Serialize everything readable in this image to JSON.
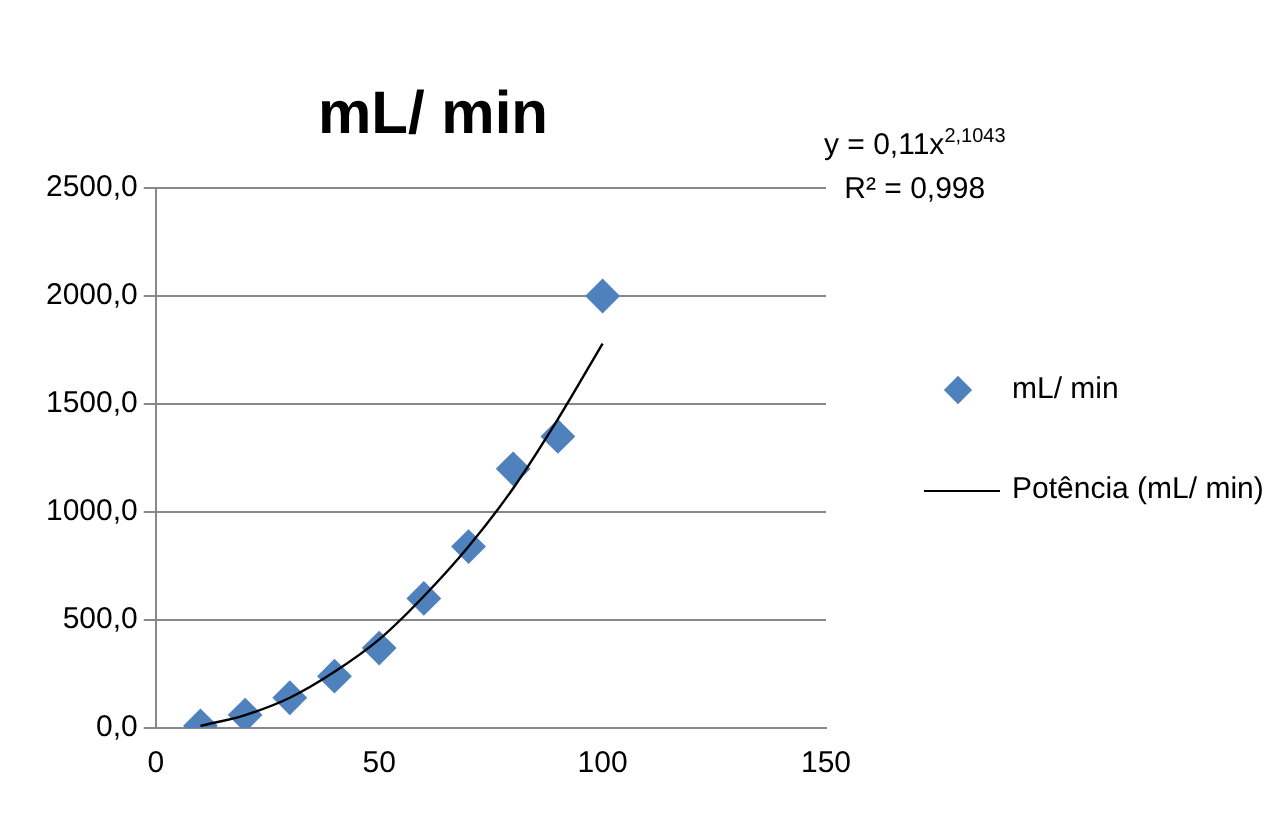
{
  "chart_data": {
    "type": "scatter",
    "title": "mL/ min",
    "annotations": [
      "y = 0,11x$^{2,1043}$",
      "R² = 0,998"
    ],
    "series": [
      {
        "name": "mL/ min",
        "color": "#4f81bd",
        "marker": "diamond",
        "x": [
          10,
          20,
          30,
          40,
          50,
          60,
          70,
          80,
          90,
          100
        ],
        "values": [
          10,
          60,
          140,
          240,
          370,
          600,
          840,
          1200,
          1350,
          2000
        ]
      },
      {
        "name": "Potência (mL/ min)",
        "type": "line",
        "color": "#000000",
        "marker": "none",
        "line_style": "solid",
        "x": [
          10,
          20,
          30,
          40,
          50,
          60,
          70,
          80,
          90,
          100
        ],
        "values": [
          10,
          60,
          140,
          260,
          410,
          610,
          840,
          1110,
          1430,
          1780
        ]
      }
    ],
    "xlim": [
      0,
      150
    ],
    "xticks": [
      0,
      50,
      100,
      150
    ],
    "ylim": [
      0,
      2500
    ],
    "yticks": [
      {
        "value": 0,
        "label": "0,0"
      },
      {
        "value": 500,
        "label": "500,0"
      },
      {
        "value": 1000,
        "label": "1000,0"
      },
      {
        "value": 1500,
        "label": "1500,0"
      },
      {
        "value": 2000,
        "label": "2000,0"
      },
      {
        "value": 2500,
        "label": "2500,0"
      }
    ],
    "grid": "y",
    "legend": "right"
  }
}
